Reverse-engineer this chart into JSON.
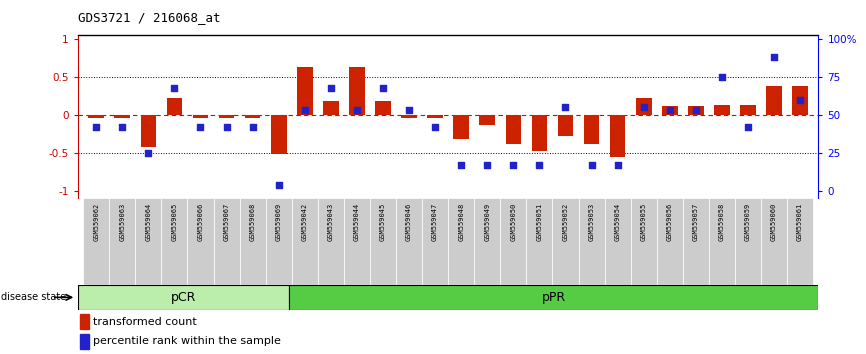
{
  "title": "GDS3721 / 216068_at",
  "samples": [
    "GSM559062",
    "GSM559063",
    "GSM559064",
    "GSM559065",
    "GSM559066",
    "GSM559067",
    "GSM559068",
    "GSM559069",
    "GSM559042",
    "GSM559043",
    "GSM559044",
    "GSM559045",
    "GSM559046",
    "GSM559047",
    "GSM559048",
    "GSM559049",
    "GSM559050",
    "GSM559051",
    "GSM559052",
    "GSM559053",
    "GSM559054",
    "GSM559055",
    "GSM559056",
    "GSM559057",
    "GSM559058",
    "GSM559059",
    "GSM559060",
    "GSM559061"
  ],
  "transformed_count": [
    -0.04,
    -0.04,
    -0.42,
    0.22,
    -0.04,
    -0.04,
    -0.04,
    -0.52,
    0.63,
    0.18,
    0.63,
    0.18,
    -0.04,
    -0.04,
    -0.32,
    -0.13,
    -0.38,
    -0.48,
    -0.28,
    -0.38,
    -0.55,
    0.22,
    0.12,
    0.12,
    0.13,
    0.13,
    0.38,
    0.38
  ],
  "percentile_rank": [
    42,
    42,
    25,
    68,
    42,
    42,
    42,
    4,
    53,
    68,
    53,
    68,
    53,
    42,
    17,
    17,
    17,
    17,
    55,
    17,
    17,
    55,
    53,
    53,
    75,
    42,
    88,
    60
  ],
  "pCR_count": 8,
  "pPR_count": 20,
  "bar_color": "#cc2200",
  "scatter_color": "#2222cc",
  "yticks_left": [
    -1,
    -0.5,
    0,
    0.5,
    1
  ],
  "yticks_right": [
    0,
    25,
    50,
    75,
    100
  ],
  "ylim": [
    -1.1,
    1.05
  ],
  "pcr_color": "#bbeeaa",
  "ppr_color": "#55cc44",
  "label_bar": "transformed count",
  "label_scatter": "percentile rank within the sample"
}
